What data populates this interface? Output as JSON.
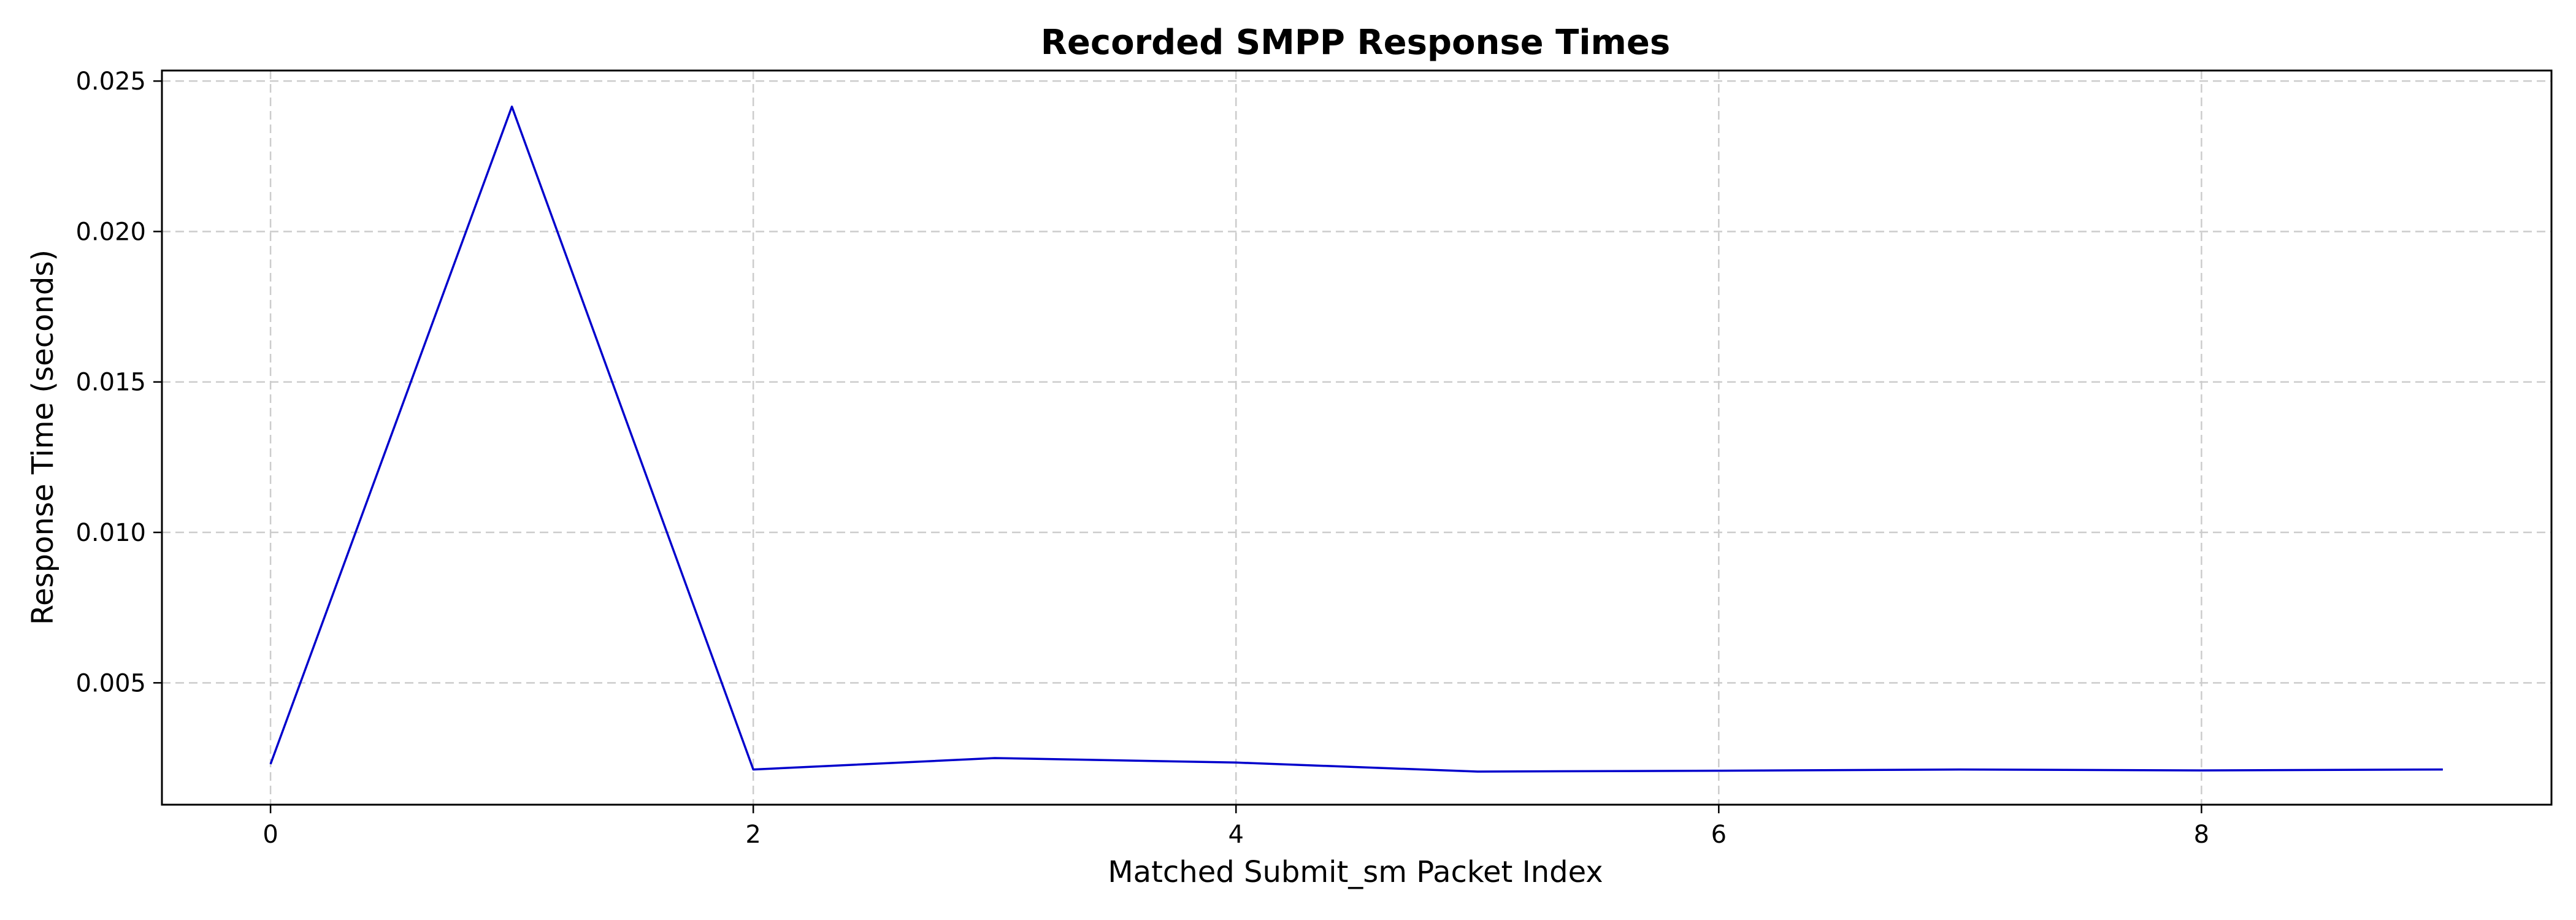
{
  "chart_data": {
    "type": "line",
    "title": "Recorded SMPP Response Times",
    "xlabel": "Matched Submit_sm Packet Index",
    "ylabel": "Response Time (seconds)",
    "xlim": [
      -0.45,
      9.45
    ],
    "ylim": [
      0.00095,
      0.02535
    ],
    "x_ticks": [
      0,
      2,
      4,
      6,
      8
    ],
    "x_tick_labels": [
      "0",
      "2",
      "4",
      "6",
      "8"
    ],
    "y_ticks": [
      0.005,
      0.01,
      0.015,
      0.02,
      0.025
    ],
    "y_tick_labels": [
      "0.005",
      "0.010",
      "0.015",
      "0.020",
      "0.025"
    ],
    "grid": true,
    "series": [
      {
        "color": "#0000cc",
        "x": [
          0,
          1,
          2,
          3,
          4,
          5,
          6,
          7,
          8,
          9
        ],
        "values": [
          0.0023,
          0.02415,
          0.00212,
          0.0025,
          0.00235,
          0.00205,
          0.00208,
          0.00212,
          0.00209,
          0.00212
        ]
      }
    ]
  }
}
